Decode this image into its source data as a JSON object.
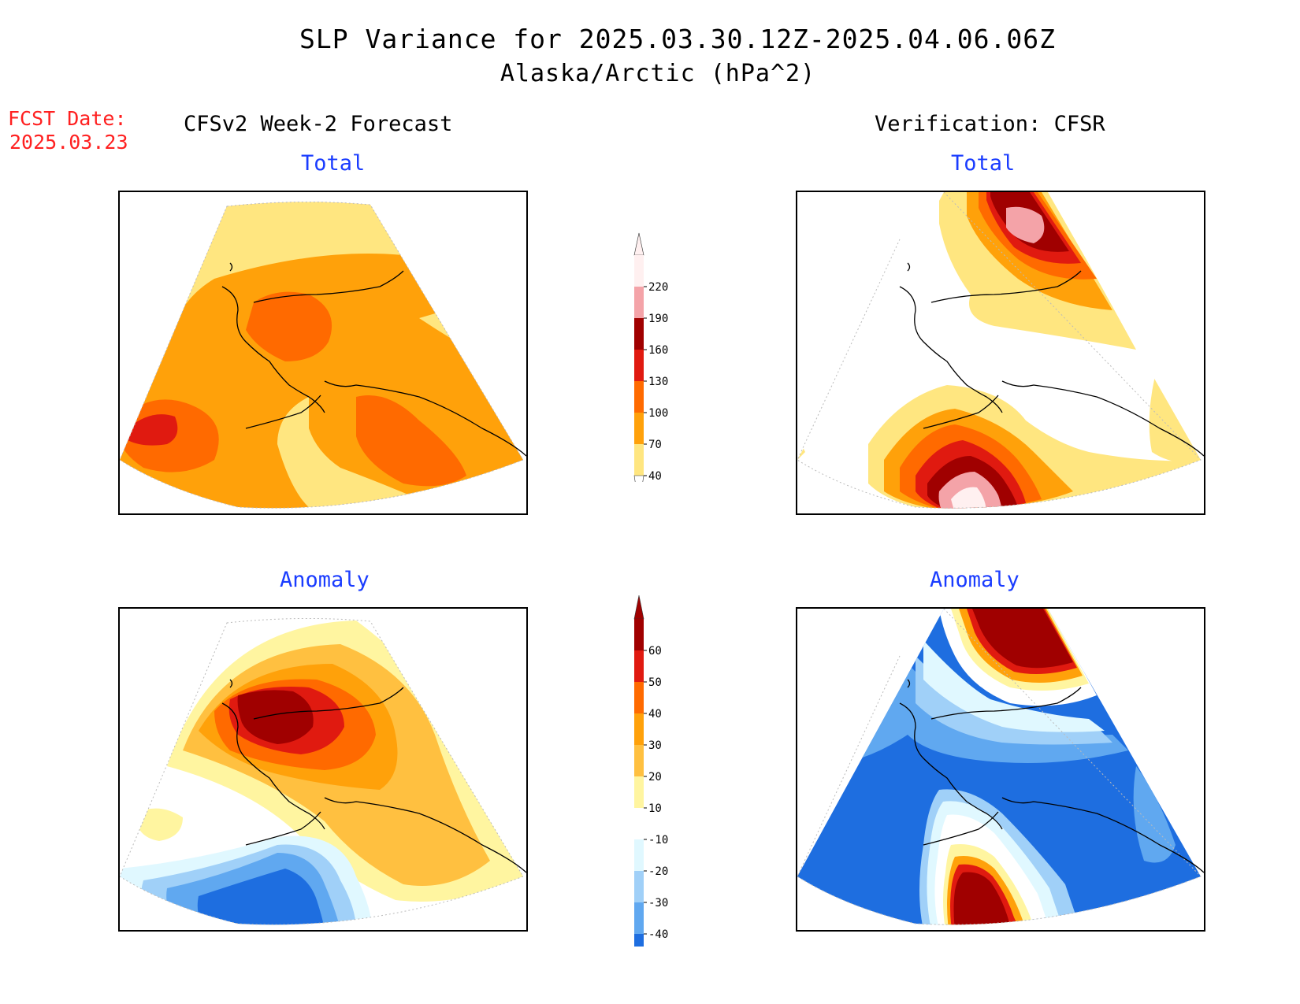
{
  "header": {
    "title": "SLP Variance for 2025.03.30.12Z-2025.04.06.06Z",
    "subtitle": "Alaska/Arctic (hPa^2)",
    "fcst_label": "FCST Date:",
    "fcst_date": "2025.03.23"
  },
  "columns": {
    "left": "CFSv2 Week-2 Forecast",
    "right": "Verification: CFSR"
  },
  "panels": {
    "top_left": "Total",
    "top_right": "Total",
    "bottom_left": "Anomaly",
    "bottom_right": "Anomaly"
  },
  "colorbars": {
    "total": {
      "ticks": [
        "220",
        "190",
        "160",
        "130",
        "100",
        "70",
        "40"
      ],
      "colors": [
        "#fff0f0",
        "#f4a3a8",
        "#a00000",
        "#e01a10",
        "#ff6a00",
        "#ffa10a",
        "#ffe680"
      ]
    },
    "anomaly": {
      "ticks": [
        "60",
        "50",
        "40",
        "30",
        "20",
        "10",
        "-10",
        "-20",
        "-30",
        "-40"
      ],
      "colors": [
        "#a00000",
        "#e01a10",
        "#ff6a00",
        "#ffa10a",
        "#ffc040",
        "#fff5a0",
        "#ffffff",
        "#e0f8ff",
        "#a0d0f8",
        "#60a8f0",
        "#1e6ee0"
      ]
    }
  }
}
